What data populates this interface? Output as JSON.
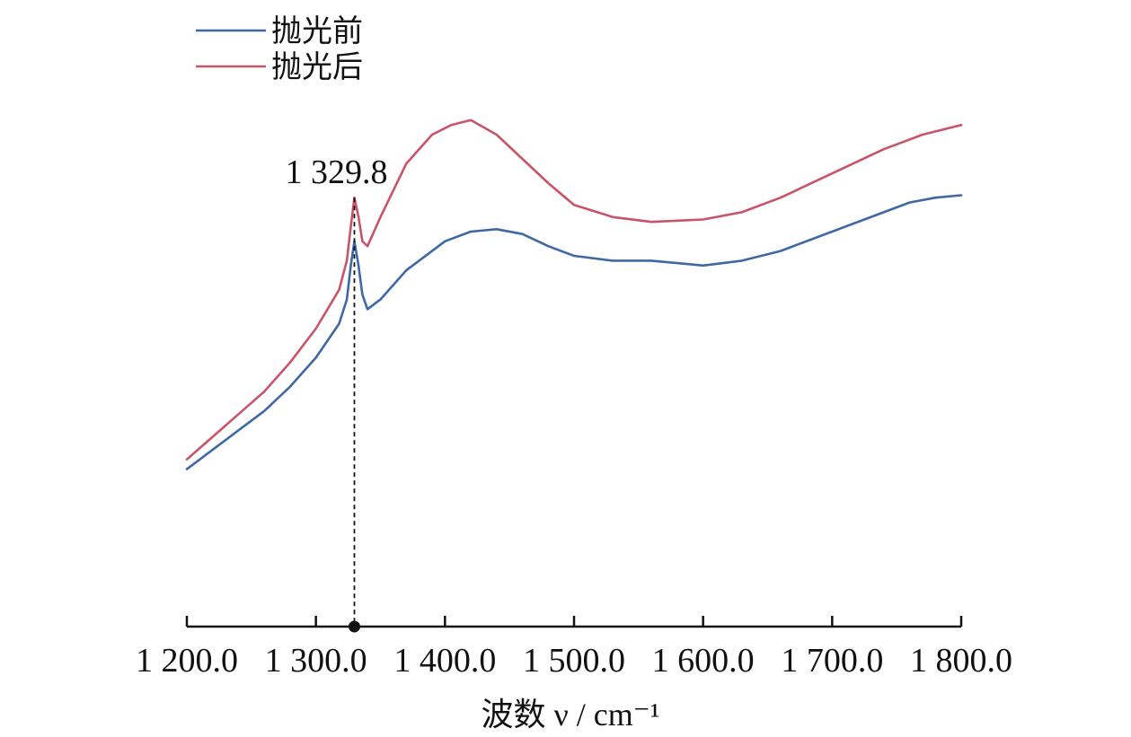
{
  "chart_data": {
    "type": "line",
    "title": "",
    "xlabel": "波数 ν / cm⁻¹",
    "ylabel": "",
    "xlim": [
      1200,
      1800
    ],
    "x_ticks": [
      1200,
      1300,
      1400,
      1500,
      1600,
      1700,
      1800
    ],
    "x_tick_labels": [
      "1 200.0",
      "1 300.0",
      "1 400.0",
      "1 500.0",
      "1 600.0",
      "1 700.0",
      "1 800.0"
    ],
    "y_axis_visible": false,
    "y_unit": "relative intensity (no scale printed)",
    "ylim": [
      0,
      100
    ],
    "grid": false,
    "legend_position": "top-left",
    "series": [
      {
        "name": "抛光前",
        "color": "#3f68a6",
        "points": [
          [
            1200,
            31
          ],
          [
            1230,
            37
          ],
          [
            1260,
            43
          ],
          [
            1280,
            48
          ],
          [
            1300,
            54
          ],
          [
            1318,
            61
          ],
          [
            1324,
            66
          ],
          [
            1327,
            73
          ],
          [
            1329.8,
            78
          ],
          [
            1333,
            73
          ],
          [
            1336,
            67
          ],
          [
            1340,
            64
          ],
          [
            1350,
            66
          ],
          [
            1370,
            72
          ],
          [
            1400,
            78
          ],
          [
            1420,
            80
          ],
          [
            1440,
            80.5
          ],
          [
            1460,
            79.5
          ],
          [
            1480,
            77
          ],
          [
            1500,
            75
          ],
          [
            1530,
            74
          ],
          [
            1560,
            74
          ],
          [
            1600,
            73
          ],
          [
            1630,
            74
          ],
          [
            1660,
            76
          ],
          [
            1700,
            80
          ],
          [
            1740,
            84
          ],
          [
            1760,
            86
          ],
          [
            1780,
            87
          ],
          [
            1800,
            87.5
          ]
        ]
      },
      {
        "name": "抛光后",
        "color": "#c8546a",
        "points": [
          [
            1200,
            33
          ],
          [
            1230,
            40
          ],
          [
            1260,
            47
          ],
          [
            1280,
            53
          ],
          [
            1300,
            60
          ],
          [
            1318,
            68
          ],
          [
            1324,
            74
          ],
          [
            1327,
            81
          ],
          [
            1329.8,
            87
          ],
          [
            1333,
            83
          ],
          [
            1336,
            78
          ],
          [
            1340,
            77
          ],
          [
            1350,
            83
          ],
          [
            1370,
            94
          ],
          [
            1390,
            100
          ],
          [
            1405,
            102
          ],
          [
            1420,
            103
          ],
          [
            1440,
            100
          ],
          [
            1460,
            95
          ],
          [
            1480,
            90
          ],
          [
            1500,
            85.5
          ],
          [
            1530,
            83
          ],
          [
            1560,
            82
          ],
          [
            1600,
            82.5
          ],
          [
            1630,
            84
          ],
          [
            1660,
            87
          ],
          [
            1700,
            92
          ],
          [
            1740,
            97
          ],
          [
            1770,
            100
          ],
          [
            1800,
            102
          ]
        ]
      }
    ],
    "annotations": [
      {
        "text": "1 329.8",
        "x": 1329.8
      }
    ]
  }
}
